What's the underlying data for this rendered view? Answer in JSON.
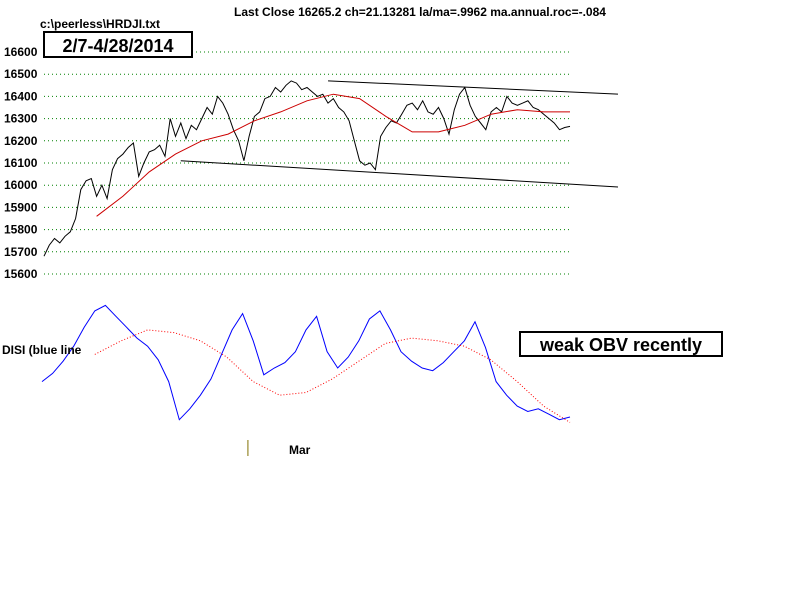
{
  "header": {
    "title": "Last Close 16265.2 ch=21.13281  la/ma=.9962 ma.annual.roc=-.084",
    "file_path": "c:\\peerless\\HRDJI.txt"
  },
  "annotations": {
    "date_range": "2/7-4/28/2014",
    "obv_note": "weak OBV recently",
    "disi_label": "DISI (blue line",
    "month_label": "Mar"
  },
  "colors": {
    "price": "#000000",
    "ma": "#cc0000",
    "disi": "#0000ff",
    "disi_ma": "#ff0000",
    "grid": "#008000",
    "trendline": "#000000",
    "month_tick": "#807000"
  },
  "chart_data": [
    {
      "type": "line",
      "title": "Last Close 16265.2 ch=21.13281  la/ma=.9962 ma.annual.roc=-.084",
      "ylim": [
        15600,
        16600
      ],
      "yticks": [
        15600,
        15700,
        15800,
        15900,
        16000,
        16100,
        16200,
        16300,
        16400,
        16500,
        16600
      ],
      "grid": true,
      "x_domain": [
        0,
        100
      ],
      "series": [
        {
          "role": "price",
          "x": [
            0,
            1,
            2,
            3,
            4,
            5,
            6,
            7,
            8,
            9,
            10,
            11,
            12,
            13,
            14,
            15,
            16,
            17,
            18,
            19,
            20,
            21,
            22,
            23,
            24,
            25,
            26,
            27,
            28,
            29,
            30,
            31,
            32,
            33,
            34,
            35,
            36,
            37,
            38,
            39,
            40,
            41,
            42,
            43,
            44,
            45,
            46,
            47,
            48,
            49,
            50,
            51,
            52,
            53,
            54,
            55,
            56,
            57,
            58,
            59,
            60,
            61,
            62,
            63,
            64,
            65,
            66,
            67,
            68,
            69,
            70,
            71,
            72,
            73,
            74,
            75,
            76,
            77,
            78,
            79,
            80,
            81,
            82,
            83,
            84,
            85,
            86,
            87,
            88,
            89,
            90,
            91,
            92,
            93,
            94,
            95,
            96,
            97,
            98,
            99,
            100
          ],
          "values": [
            15680,
            15730,
            15760,
            15740,
            15770,
            15790,
            15850,
            15980,
            16020,
            16030,
            15950,
            16000,
            15940,
            16070,
            16120,
            16140,
            16170,
            16190,
            16040,
            16100,
            16150,
            16160,
            16180,
            16130,
            16300,
            16220,
            16280,
            16210,
            16270,
            16250,
            16300,
            16350,
            16320,
            16400,
            16370,
            16320,
            16250,
            16200,
            16110,
            16220,
            16310,
            16330,
            16390,
            16400,
            16440,
            16420,
            16450,
            16470,
            16460,
            16430,
            16440,
            16420,
            16400,
            16410,
            16370,
            16390,
            16350,
            16330,
            16290,
            16200,
            16110,
            16090,
            16100,
            16070,
            16220,
            16260,
            16290,
            16280,
            16320,
            16360,
            16370,
            16340,
            16380,
            16330,
            16320,
            16350,
            16300,
            16230,
            16340,
            16410,
            16440,
            16360,
            16310,
            16280,
            16250,
            16330,
            16350,
            16330,
            16400,
            16370,
            16360,
            16370,
            16380,
            16350,
            16340,
            16320,
            16300,
            16280,
            16250,
            16260,
            16265
          ]
        },
        {
          "role": "moving-average",
          "x": [
            10,
            15,
            20,
            25,
            30,
            35,
            40,
            45,
            50,
            55,
            60,
            65,
            70,
            75,
            80,
            85,
            90,
            95,
            100
          ],
          "values": [
            15860,
            15950,
            16060,
            16140,
            16200,
            16230,
            16290,
            16330,
            16380,
            16410,
            16390,
            16310,
            16240,
            16240,
            16270,
            16320,
            16340,
            16330,
            16330
          ]
        }
      ],
      "trendlines": [
        {
          "x": [
            54,
            100
          ],
          "values": [
            16470,
            16420
          ]
        },
        {
          "x": [
            26,
            100
          ],
          "values": [
            16110,
            16005
          ]
        }
      ]
    },
    {
      "type": "line",
      "label": "DISI (blue line",
      "ylim": [
        0,
        100
      ],
      "x_domain": [
        0,
        100
      ],
      "month_marker": {
        "x": 39,
        "label": "Mar"
      },
      "series": [
        {
          "role": "disi",
          "x": [
            0,
            2,
            4,
            6,
            8,
            10,
            12,
            14,
            16,
            18,
            20,
            22,
            24,
            26,
            28,
            30,
            32,
            34,
            36,
            38,
            40,
            42,
            44,
            46,
            48,
            50,
            52,
            54,
            56,
            58,
            60,
            62,
            64,
            66,
            68,
            70,
            72,
            74,
            76,
            78,
            80,
            82,
            84,
            86,
            88,
            90,
            92,
            94,
            96,
            98,
            100
          ],
          "values": [
            40,
            46,
            55,
            66,
            80,
            92,
            96,
            88,
            80,
            72,
            66,
            56,
            40,
            12,
            20,
            30,
            42,
            60,
            78,
            90,
            70,
            45,
            50,
            54,
            62,
            78,
            88,
            62,
            50,
            58,
            70,
            86,
            92,
            78,
            62,
            55,
            50,
            48,
            54,
            62,
            70,
            84,
            65,
            40,
            30,
            22,
            18,
            20,
            16,
            12,
            14
          ]
        },
        {
          "role": "disi-ma",
          "x": [
            10,
            15,
            20,
            25,
            30,
            35,
            40,
            45,
            50,
            55,
            60,
            65,
            70,
            75,
            80,
            85,
            90,
            95,
            100
          ],
          "values": [
            60,
            70,
            78,
            76,
            70,
            58,
            40,
            30,
            32,
            42,
            55,
            68,
            72,
            70,
            66,
            56,
            40,
            22,
            10
          ]
        }
      ]
    }
  ]
}
